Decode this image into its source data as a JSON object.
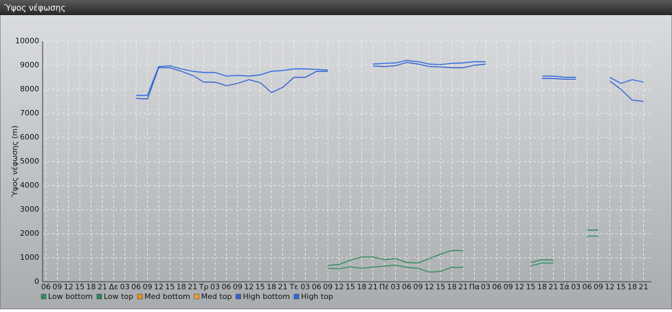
{
  "chart_data": {
    "type": "line",
    "title": "Ύψος νέφωσης",
    "y_label": "Ύψος νέφωσης (m)",
    "categories": [
      "06",
      "09",
      "12",
      "15",
      "18",
      "21",
      "Δε",
      "03",
      "06",
      "09",
      "12",
      "15",
      "18",
      "21",
      "Τρ",
      "03",
      "06",
      "09",
      "12",
      "15",
      "18",
      "21",
      "Τε",
      "03",
      "06",
      "09",
      "12",
      "15",
      "18",
      "21",
      "Πέ",
      "03",
      "06",
      "09",
      "12",
      "15",
      "18",
      "21",
      "Πα",
      "03",
      "06",
      "09",
      "12",
      "15",
      "18",
      "21",
      "Σά",
      "03",
      "06",
      "09",
      "12",
      "15",
      "18",
      "21"
    ],
    "ylim": [
      0,
      10000
    ],
    "yticks": [
      0,
      1000,
      2000,
      3000,
      4000,
      5000,
      6000,
      7000,
      8000,
      9000,
      10000
    ],
    "grid": true,
    "series": [
      {
        "name": "Low bottom",
        "color": "#2f9060",
        "values": [
          null,
          null,
          null,
          null,
          null,
          null,
          null,
          null,
          null,
          null,
          null,
          null,
          null,
          null,
          null,
          null,
          null,
          null,
          null,
          null,
          null,
          null,
          null,
          null,
          null,
          560,
          540,
          620,
          560,
          610,
          650,
          690,
          600,
          560,
          400,
          430,
          600,
          590,
          null,
          null,
          null,
          null,
          null,
          660,
          780,
          780,
          null,
          null,
          1900,
          1900,
          null,
          null,
          null,
          null
        ]
      },
      {
        "name": "Low top",
        "color": "#2a8a5a",
        "values": [
          null,
          null,
          null,
          null,
          null,
          null,
          null,
          null,
          null,
          null,
          null,
          null,
          null,
          null,
          null,
          null,
          null,
          null,
          null,
          null,
          null,
          null,
          null,
          null,
          null,
          680,
          720,
          900,
          1030,
          1030,
          920,
          960,
          800,
          780,
          960,
          1150,
          1300,
          1290,
          null,
          null,
          null,
          null,
          null,
          800,
          920,
          900,
          null,
          null,
          2150,
          2150,
          null,
          null,
          null,
          null
        ]
      },
      {
        "name": "Med bottom",
        "color": "#e8901c",
        "values": [
          null,
          null,
          null,
          null,
          null,
          null,
          null,
          null,
          null,
          null,
          null,
          null,
          null,
          null,
          null,
          null,
          null,
          null,
          null,
          null,
          null,
          null,
          null,
          null,
          null,
          null,
          null,
          null,
          null,
          null,
          null,
          null,
          null,
          null,
          null,
          null,
          null,
          null,
          null,
          null,
          null,
          null,
          null,
          null,
          null,
          null,
          null,
          null,
          null,
          null,
          null,
          null,
          null,
          null
        ]
      },
      {
        "name": "Med top",
        "color": "#f0a030",
        "values": [
          null,
          null,
          null,
          null,
          null,
          null,
          null,
          null,
          null,
          null,
          null,
          null,
          null,
          null,
          null,
          null,
          null,
          null,
          null,
          null,
          null,
          null,
          null,
          null,
          null,
          null,
          null,
          null,
          null,
          null,
          null,
          null,
          null,
          null,
          null,
          null,
          null,
          null,
          null,
          null,
          null,
          null,
          null,
          null,
          null,
          null,
          null,
          null,
          null,
          null,
          null,
          null,
          null,
          null
        ]
      },
      {
        "name": "High bottom",
        "color": "#3560d0",
        "values": [
          null,
          null,
          null,
          null,
          null,
          null,
          null,
          null,
          7620,
          7600,
          8900,
          8900,
          8750,
          8580,
          8300,
          8300,
          8150,
          8250,
          8400,
          8280,
          7870,
          8080,
          8500,
          8500,
          8750,
          8750,
          null,
          null,
          null,
          8970,
          8950,
          8980,
          9120,
          9050,
          8950,
          8930,
          8900,
          8900,
          9000,
          9050,
          null,
          null,
          null,
          null,
          8450,
          8450,
          8420,
          8420,
          null,
          null,
          8350,
          8000,
          7550,
          7500
        ]
      },
      {
        "name": "High top",
        "color": "#2d6ae0",
        "values": [
          null,
          null,
          null,
          null,
          null,
          null,
          null,
          null,
          7750,
          7750,
          8950,
          8980,
          8850,
          8750,
          8700,
          8700,
          8550,
          8580,
          8550,
          8600,
          8750,
          8780,
          8850,
          8850,
          8830,
          8800,
          null,
          null,
          null,
          9050,
          9080,
          9100,
          9200,
          9150,
          9050,
          9030,
          9080,
          9100,
          9150,
          9150,
          null,
          null,
          null,
          null,
          8550,
          8550,
          8500,
          8500,
          null,
          null,
          8500,
          8250,
          8400,
          8300
        ]
      }
    ]
  }
}
